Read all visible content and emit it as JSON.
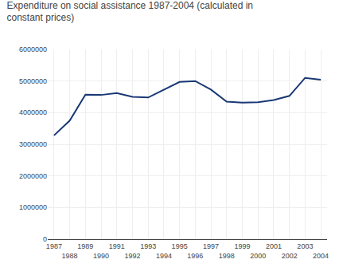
{
  "chart_data": {
    "type": "line",
    "title": "Expenditure on social assistance 1987-2004 (calculated in\nconstant prices)",
    "x": [
      1987,
      1988,
      1989,
      1990,
      1991,
      1992,
      1993,
      1994,
      1995,
      1996,
      1997,
      1998,
      1999,
      2000,
      2001,
      2002,
      2003,
      2004
    ],
    "values": [
      3280000,
      3750000,
      4570000,
      4560000,
      4620000,
      4500000,
      4480000,
      4720000,
      4970000,
      5000000,
      4730000,
      4350000,
      4320000,
      4330000,
      4400000,
      4530000,
      5100000,
      5040000
    ],
    "color": "#1a3875",
    "xlim": [
      1986.6,
      2004.4
    ],
    "xticks": [
      1987,
      1988,
      1989,
      1990,
      1991,
      1992,
      1993,
      1994,
      1995,
      1996,
      1997,
      1998,
      1999,
      2000,
      2001,
      2002,
      2003,
      2004
    ],
    "ylim": [
      0,
      6000000
    ],
    "yticks": [
      0,
      1000000,
      2000000,
      3000000,
      4000000,
      5000000,
      6000000
    ],
    "grid": true
  }
}
